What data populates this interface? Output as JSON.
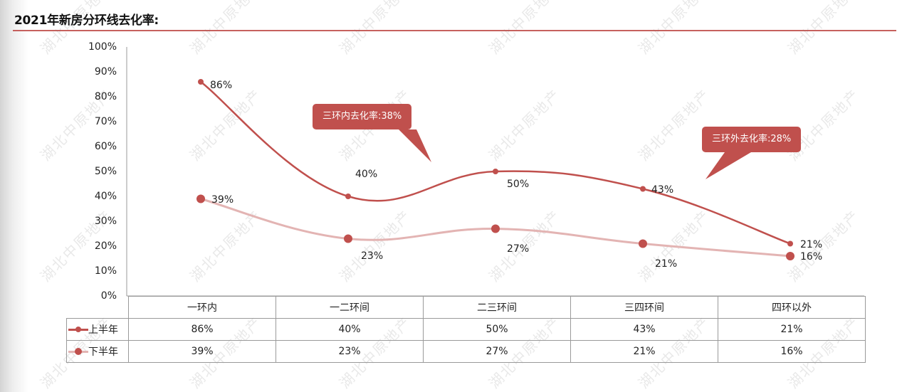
{
  "header": {
    "title": "2021年新房分环线去化率:"
  },
  "colors": {
    "series1": "#c0504d",
    "series2": "#e3b4b3",
    "marker": "#c0504d",
    "rule": "#c0504d",
    "callout_bg": "#c0504d"
  },
  "watermark": "湖北中原地产",
  "callouts": [
    {
      "text": "三环内去化率:38%"
    },
    {
      "text": "三环外去化率:28%"
    }
  ],
  "y_axis": {
    "ticks": [
      "100%",
      "90%",
      "80%",
      "70%",
      "60%",
      "50%",
      "40%",
      "30%",
      "20%",
      "10%",
      "0%"
    ]
  },
  "table": {
    "columns": [
      "一环内",
      "一二环间",
      "二三环间",
      "三四环间",
      "四环以外"
    ],
    "rows": [
      {
        "label": "上半年",
        "values": [
          "86%",
          "40%",
          "50%",
          "43%",
          "21%"
        ]
      },
      {
        "label": "下半年",
        "values": [
          "39%",
          "23%",
          "27%",
          "21%",
          "16%"
        ]
      }
    ]
  },
  "data_labels": {
    "s1": [
      "86%",
      "40%",
      "50%",
      "43%",
      "21%"
    ],
    "s2": [
      "39%",
      "23%",
      "27%",
      "21%",
      "16%"
    ]
  },
  "chart_data": {
    "type": "line",
    "title": "2021年新房分环线去化率",
    "categories": [
      "一环内",
      "一二环间",
      "二三环间",
      "三四环间",
      "四环以外"
    ],
    "series": [
      {
        "name": "上半年",
        "values": [
          86,
          40,
          50,
          43,
          21
        ],
        "color": "#c0504d",
        "smooth": true
      },
      {
        "name": "下半年",
        "values": [
          39,
          23,
          27,
          21,
          16
        ],
        "color": "#e3b4b3",
        "smooth": true
      }
    ],
    "xlabel": "",
    "ylabel": "",
    "ylim": [
      0,
      100
    ],
    "y_tick_format": "percent",
    "y_ticks": [
      0,
      10,
      20,
      30,
      40,
      50,
      60,
      70,
      80,
      90,
      100
    ],
    "grid": false,
    "legend_position": "data-table",
    "data_table": true,
    "annotations": [
      {
        "text": "三环内去化率:38%",
        "type": "callout"
      },
      {
        "text": "三环外去化率:28%",
        "type": "callout"
      }
    ]
  }
}
